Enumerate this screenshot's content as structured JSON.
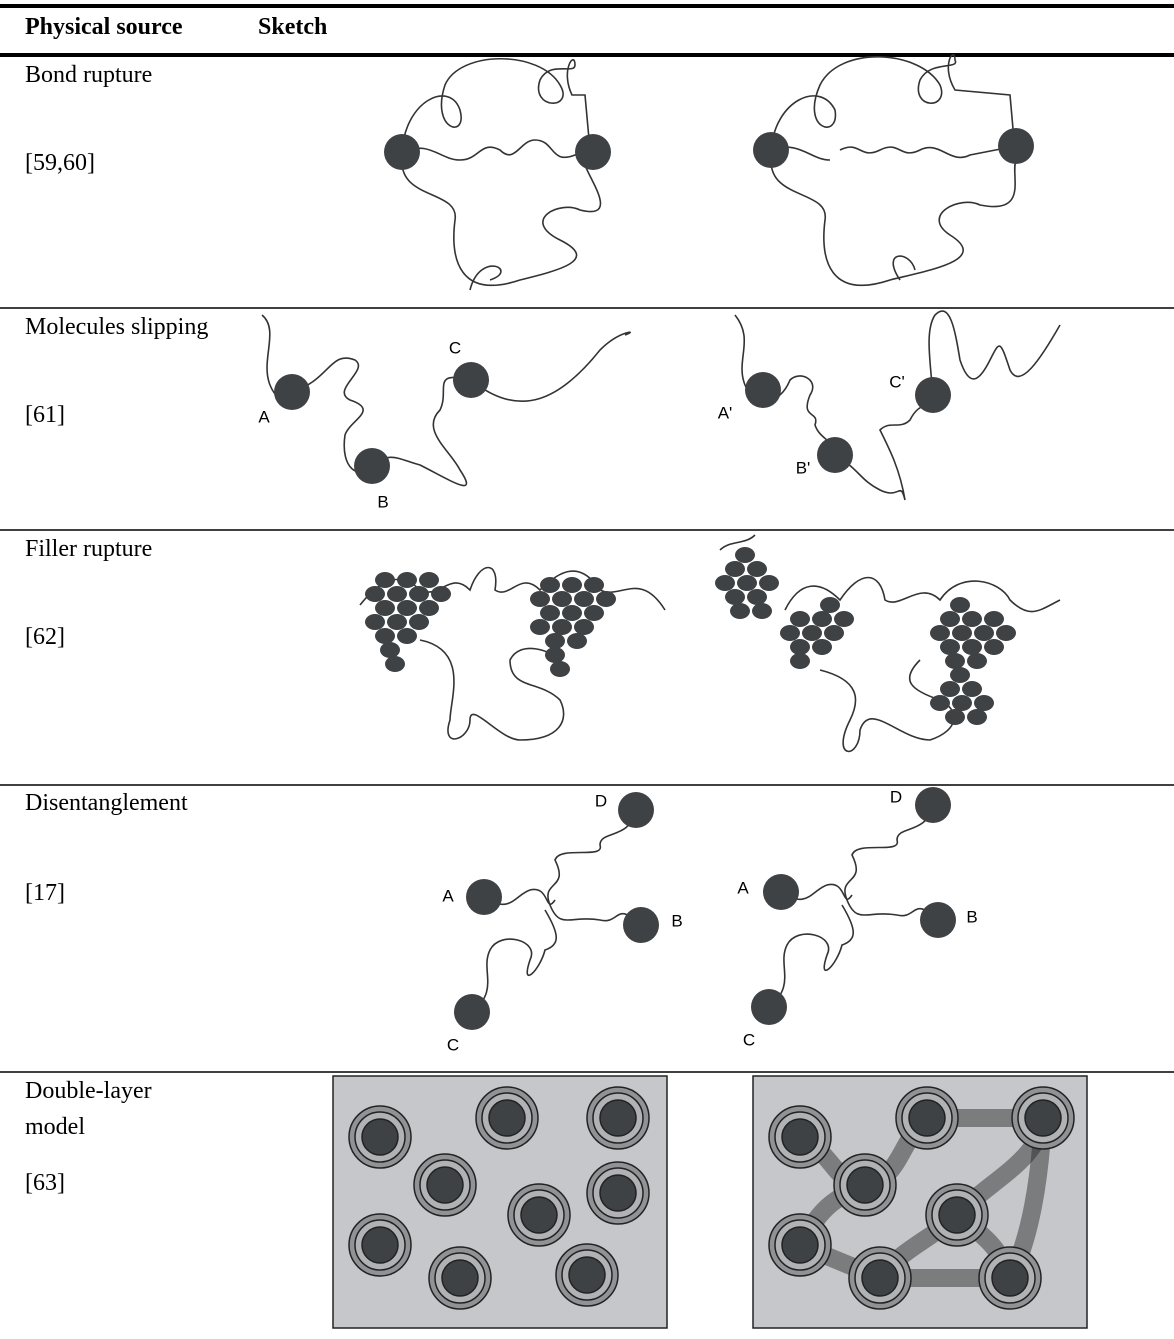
{
  "table": {
    "header": [
      "Physical source",
      "Sketch"
    ],
    "rows": [
      {
        "source": "Bond rupture",
        "ref": "[59,60]"
      },
      {
        "source": "Molecules slipping",
        "ref": "[61]",
        "labels": [
          "A",
          "B",
          "C",
          "A'",
          "B'",
          "C'"
        ]
      },
      {
        "source": "Filler rupture",
        "ref": "[62]"
      },
      {
        "source": "Disentanglement",
        "ref": "[17]",
        "labels": [
          "D",
          "A",
          "B",
          "C",
          "D",
          "A",
          "B",
          "C"
        ]
      },
      {
        "source": "Double-layer model",
        "ref": "[63]"
      }
    ]
  }
}
